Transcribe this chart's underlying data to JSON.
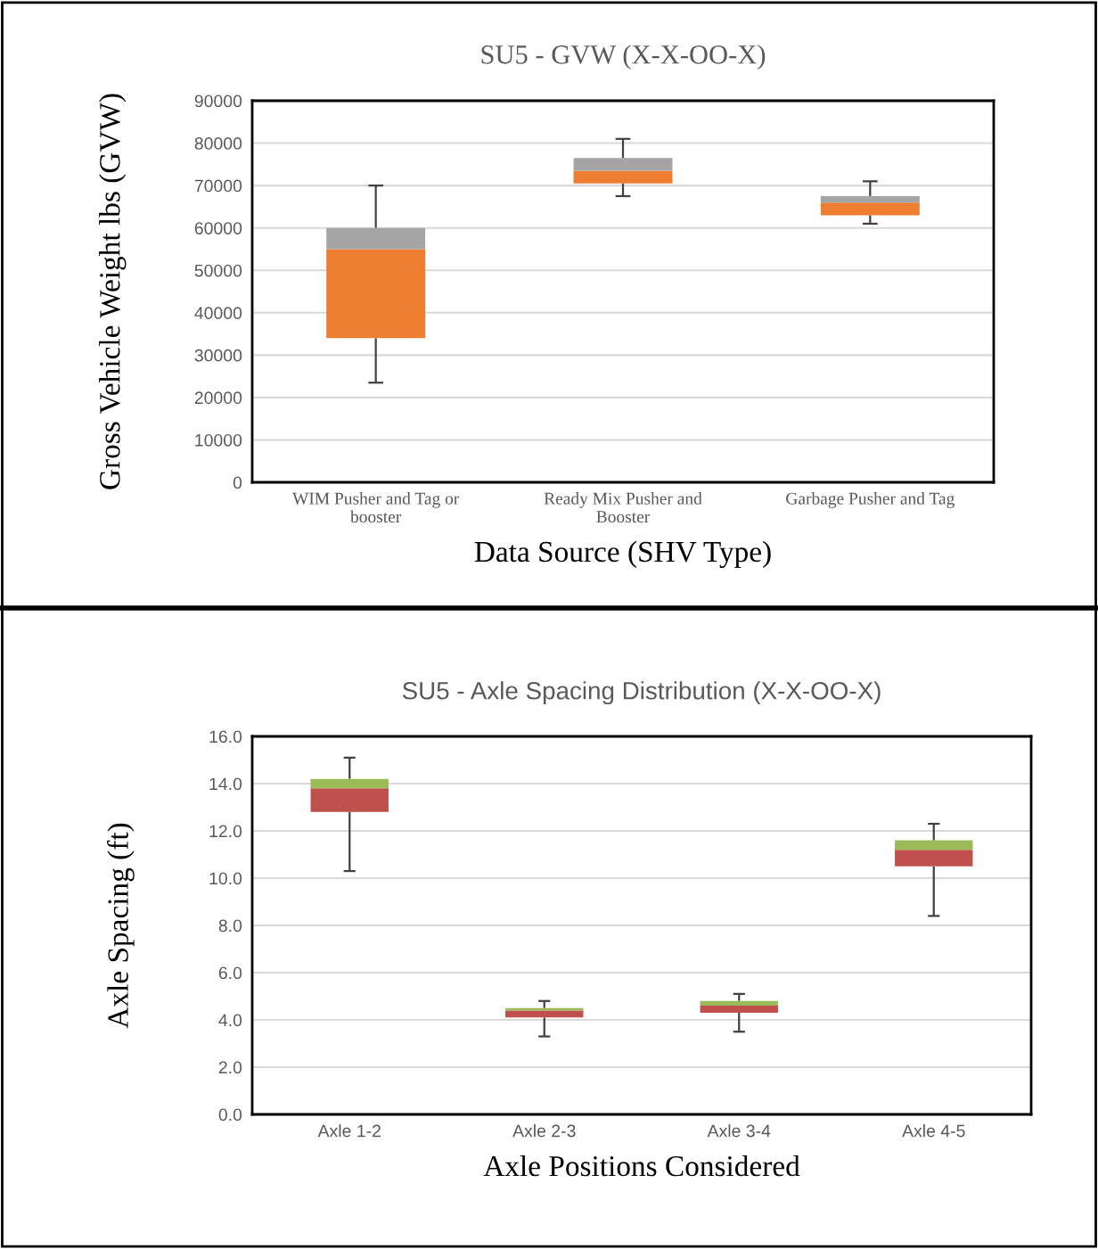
{
  "chart_data": [
    {
      "type": "box",
      "title": "SU5 - GVW (X-X-OO-X)",
      "xlabel": "Data Source (SHV Type)",
      "ylabel": "Gross Vehicle Weight lbs (GVW)",
      "categories": [
        "WIM Pusher and Tag or\nbooster",
        "Ready Mix Pusher and\nBooster",
        "Garbage Pusher and Tag"
      ],
      "boxes": [
        {
          "low": 23500,
          "q1": 34000,
          "median": 55000,
          "q3": 60000,
          "high": 70000
        },
        {
          "low": 67500,
          "q1": 70500,
          "median": 73500,
          "q3": 76500,
          "high": 81000
        },
        {
          "low": 61000,
          "q1": 63000,
          "median": 66000,
          "q3": 67500,
          "high": 71000
        }
      ],
      "colors": [
        [
          "#ed7d31",
          "#a5a5a5"
        ],
        [
          "#ed7d31",
          "#a5a5a5"
        ],
        [
          "#ed7d31",
          "#a5a5a5"
        ]
      ],
      "ylim": [
        0,
        90000
      ],
      "yticks": [
        0,
        10000,
        20000,
        30000,
        40000,
        50000,
        60000,
        70000,
        80000,
        90000
      ],
      "grid": "y",
      "legend": false
    },
    {
      "type": "box",
      "title": "SU5 - Axle Spacing Distribution (X-X-OO-X)",
      "xlabel": "Axle Positions Considered",
      "ylabel": "Axle Spacing (ft)",
      "categories": [
        "Axle 1-2",
        "Axle 2-3",
        "Axle 3-4",
        "Axle 4-5"
      ],
      "boxes": [
        {
          "low": 10.3,
          "q1": 12.8,
          "median": 13.8,
          "q3": 14.2,
          "high": 15.1
        },
        {
          "low": 3.3,
          "q1": 4.1,
          "median": 4.4,
          "q3": 4.5,
          "high": 4.8
        },
        {
          "low": 3.5,
          "q1": 4.3,
          "median": 4.6,
          "q3": 4.8,
          "high": 5.1
        },
        {
          "low": 8.4,
          "q1": 10.5,
          "median": 11.2,
          "q3": 11.6,
          "high": 12.3
        }
      ],
      "colors": [
        [
          "#c0504d",
          "#9bbb59"
        ],
        [
          "#c0504d",
          "#9bbb59"
        ],
        [
          "#c0504d",
          "#9bbb59"
        ],
        [
          "#c0504d",
          "#9bbb59"
        ]
      ],
      "ylim": [
        0,
        16
      ],
      "yticks": [
        {
          "value": 0,
          "label": "0.0"
        },
        {
          "value": 2,
          "label": "2.0"
        },
        {
          "value": 4,
          "label": "4.0"
        },
        {
          "value": 6,
          "label": "6.0"
        },
        {
          "value": 8,
          "label": "8.0"
        },
        {
          "value": 10,
          "label": "10.0"
        },
        {
          "value": 12,
          "label": "12.0"
        },
        {
          "value": 14,
          "label": "14.0"
        },
        {
          "value": 16,
          "label": "16.0"
        }
      ],
      "grid": "y",
      "legend": false
    }
  ]
}
